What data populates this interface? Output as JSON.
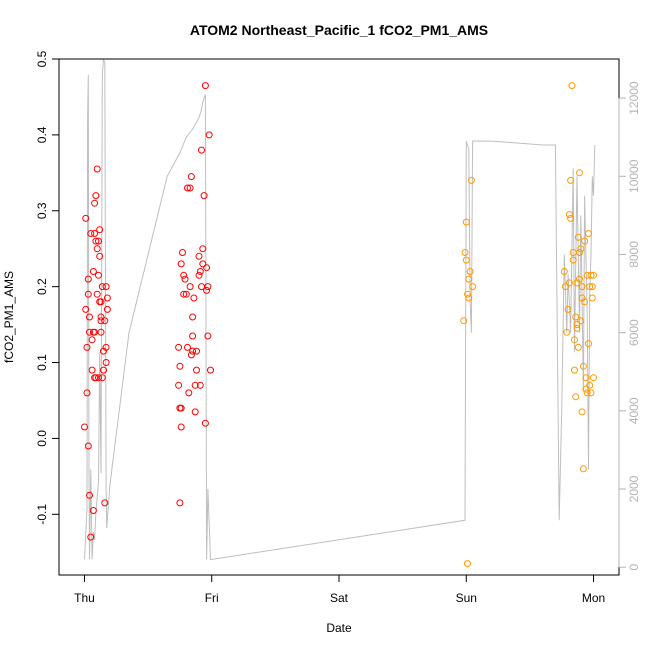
{
  "chart_data": {
    "type": "scatter",
    "title": "ATOM2 Northeast_Pacific_1 fCO2_PM1_AMS",
    "xlabel": "Date",
    "ylabel": "fCO2_PM1_AMS",
    "x_tick_labels": [
      "Thu",
      "Fri",
      "Sat",
      "Sun",
      "Mon"
    ],
    "x_unit": "days since first tick (Thu)",
    "xlim": [
      -0.2,
      4.2
    ],
    "ylim": [
      -0.18,
      0.5
    ],
    "y_ticks": [
      -0.1,
      0.0,
      0.1,
      0.2,
      0.3,
      0.4,
      0.5
    ],
    "y_tick_labels": [
      "-0.1",
      "0.0",
      "0.1",
      "0.2",
      "0.3",
      "0.4",
      "0.5"
    ],
    "y2lim": [
      -200,
      13000
    ],
    "y2_ticks": [
      0,
      2000,
      4000,
      6000,
      8000,
      10000,
      12000
    ],
    "y2_tick_labels": [
      "0",
      "2000",
      "4000",
      "6000",
      "8000",
      "10000",
      "12000"
    ],
    "grid": false,
    "colors": {
      "series_a": "#ff0000",
      "series_b": "#ff9900",
      "secondary_line": "#bebebe",
      "axis": "#000000",
      "secondary_axis": "#b3b3b3"
    },
    "series": [
      {
        "color": "red",
        "x": [
          0.0,
          0.01,
          0.01,
          0.02,
          0.02,
          0.03,
          0.03,
          0.03,
          0.04,
          0.04,
          0.04,
          0.05,
          0.05,
          0.06,
          0.06,
          0.07,
          0.07,
          0.07,
          0.08,
          0.08,
          0.08,
          0.08,
          0.09,
          0.09,
          0.09,
          0.1,
          0.1,
          0.1,
          0.11,
          0.11,
          0.11,
          0.12,
          0.12,
          0.12,
          0.13,
          0.13,
          0.13,
          0.13,
          0.14,
          0.14,
          0.15,
          0.15,
          0.16,
          0.16,
          0.17,
          0.17,
          0.17,
          0.18,
          0.18,
          0.74,
          0.74,
          0.75,
          0.75,
          0.75,
          0.76,
          0.76,
          0.76,
          0.77,
          0.78,
          0.78,
          0.79,
          0.8,
          0.81,
          0.81,
          0.82,
          0.83,
          0.83,
          0.84,
          0.84,
          0.85,
          0.85,
          0.85,
          0.86,
          0.87,
          0.87,
          0.88,
          0.88,
          0.9,
          0.9,
          0.91,
          0.91,
          0.92,
          0.92,
          0.93,
          0.93,
          0.94,
          0.95,
          0.95,
          0.96,
          0.96,
          0.97,
          0.97,
          0.98,
          0.99
        ],
        "y": [
          0.015,
          0.29,
          0.17,
          0.12,
          0.06,
          -0.01,
          0.19,
          0.21,
          0.16,
          0.14,
          -0.075,
          -0.13,
          0.27,
          0.09,
          0.13,
          0.22,
          0.14,
          -0.095,
          0.31,
          0.08,
          0.27,
          0.14,
          0.26,
          0.08,
          0.32,
          0.355,
          0.25,
          0.19,
          0.26,
          0.08,
          0.215,
          0.18,
          0.24,
          0.275,
          0.16,
          0.14,
          0.18,
          0.155,
          0.2,
          0.08,
          0.09,
          0.115,
          -0.085,
          0.155,
          0.12,
          0.2,
          0.1,
          0.185,
          0.17,
          0.07,
          0.12,
          0.095,
          0.04,
          -0.085,
          0.015,
          0.04,
          0.23,
          0.245,
          0.215,
          0.19,
          0.21,
          0.19,
          0.33,
          0.12,
          0.06,
          0.33,
          0.2,
          0.345,
          0.11,
          0.135,
          0.16,
          0.115,
          0.185,
          0.035,
          0.07,
          0.09,
          0.115,
          0.215,
          0.24,
          0.22,
          0.07,
          0.38,
          0.2,
          0.25,
          0.23,
          0.32,
          0.02,
          0.465,
          0.225,
          0.195,
          0.135,
          0.2,
          0.4,
          0.09
        ]
      },
      {
        "color": "orange",
        "x": [
          2.98,
          2.99,
          3.0,
          3.0,
          3.01,
          3.01,
          3.02,
          3.02,
          3.03,
          3.04,
          3.05,
          3.77,
          3.78,
          3.79,
          3.8,
          3.81,
          3.81,
          3.82,
          3.82,
          3.83,
          3.84,
          3.84,
          3.85,
          3.85,
          3.86,
          3.86,
          3.87,
          3.87,
          3.87,
          3.88,
          3.88,
          3.89,
          3.89,
          3.89,
          3.9,
          3.9,
          3.91,
          3.91,
          3.91,
          3.92,
          3.92,
          3.93,
          3.93,
          3.94,
          3.94,
          3.95,
          3.95,
          3.96,
          3.96,
          3.97,
          3.97,
          3.98,
          3.98,
          3.99,
          3.99,
          4.0,
          4.0
        ],
        "y": [
          0.155,
          0.245,
          0.235,
          0.285,
          0.19,
          -0.165,
          0.185,
          0.21,
          0.22,
          0.34,
          0.2,
          0.22,
          0.2,
          0.14,
          0.17,
          0.205,
          0.295,
          0.29,
          0.34,
          0.465,
          0.245,
          0.235,
          0.13,
          0.09,
          0.16,
          0.055,
          0.15,
          0.205,
          0.145,
          0.265,
          0.12,
          0.35,
          0.245,
          0.21,
          0.155,
          0.25,
          0.035,
          0.185,
          0.2,
          0.095,
          -0.04,
          0.26,
          0.18,
          0.08,
          0.065,
          0.06,
          0.215,
          0.27,
          0.125,
          0.2,
          0.07,
          0.06,
          0.215,
          0.2,
          0.185,
          0.08,
          0.215
        ]
      }
    ],
    "secondary_line": {
      "color": "gray",
      "axis": "right",
      "x": [
        0.0,
        0.02,
        0.025,
        0.03,
        0.035,
        0.04,
        0.05,
        0.06,
        0.07,
        0.08,
        0.09,
        0.1,
        0.11,
        0.12,
        0.13,
        0.14,
        0.15,
        0.16,
        0.17,
        0.175,
        0.2,
        0.35,
        0.5,
        0.65,
        0.75,
        0.8,
        0.85,
        0.9,
        0.92,
        0.93,
        0.95,
        0.96,
        0.97,
        0.99,
        1.0,
        2.99,
        3.0,
        3.01,
        3.02,
        3.03,
        3.04,
        3.05,
        3.06,
        3.08,
        3.1,
        3.2,
        3.4,
        3.6,
        3.7,
        3.73,
        3.75,
        3.77,
        3.79,
        3.8,
        3.82,
        3.84,
        3.85,
        3.87,
        3.89,
        3.9,
        3.92,
        3.93,
        3.95,
        3.96,
        3.97,
        3.98,
        3.99,
        4.0,
        4.01
      ],
      "y": [
        200,
        1500,
        11500,
        12600,
        3000,
        200,
        2500,
        200,
        900,
        700,
        1400,
        1800,
        2200,
        5500,
        2400,
        12600,
        13000,
        12900,
        2000,
        1000,
        2100,
        6000,
        8000,
        10000,
        10600,
        11000,
        11200,
        11500,
        11700,
        11900,
        12100,
        200,
        2000,
        200,
        200,
        1200,
        10900,
        10800,
        10700,
        6800,
        6000,
        10900,
        10900,
        10900,
        10900,
        10900,
        10850,
        10800,
        10800,
        1200,
        4000,
        8000,
        6000,
        7500,
        6000,
        10200,
        5500,
        10000,
        6000,
        9000,
        4500,
        9500,
        6500,
        2500,
        7000,
        8000,
        10000,
        9500,
        10800
      ]
    }
  }
}
